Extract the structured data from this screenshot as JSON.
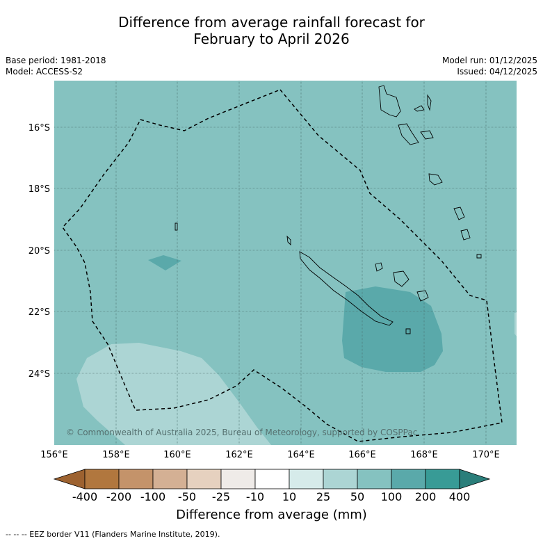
{
  "title_line1": "Difference from average rainfall forecast for",
  "title_line2": "February to April 2026",
  "left_meta": {
    "base_period": "Base period: 1981-2018",
    "model": "Model: ACCESS-S2"
  },
  "right_meta": {
    "model_run": "Model run: 01/12/2025",
    "issued": "Issued: 04/12/2025"
  },
  "map": {
    "lat_labels": [
      "16°S",
      "18°S",
      "20°S",
      "22°S",
      "24°S"
    ],
    "lon_labels": [
      "156°E",
      "158°E",
      "160°E",
      "162°E",
      "164°E",
      "166°E",
      "168°E",
      "170°E"
    ],
    "copyright": "© Commonwealth of Australia 2025, Bureau of Meteorology, supported by COSPPac",
    "colors": {
      "base": "#85c2c0",
      "wet": "#5aa9aa",
      "light": "#acd5d4"
    }
  },
  "colorbar": {
    "tick_labels": [
      "-400",
      "-200",
      "-100",
      "-50",
      "-25",
      "-10",
      "10",
      "25",
      "50",
      "100",
      "200",
      "400"
    ],
    "colors": [
      "#9d6230",
      "#b1773e",
      "#c4936a",
      "#d4b094",
      "#e6d1bf",
      "#efebe8",
      "#ffffff",
      "#d6ebea",
      "#acd5d4",
      "#85c2c0",
      "#5aa9aa",
      "#389b96",
      "#2a7e7a"
    ],
    "label": "Difference from average (mm)"
  },
  "footer": "-- -- -- EEZ border V11 (Flanders Marine Institute, 2019)."
}
